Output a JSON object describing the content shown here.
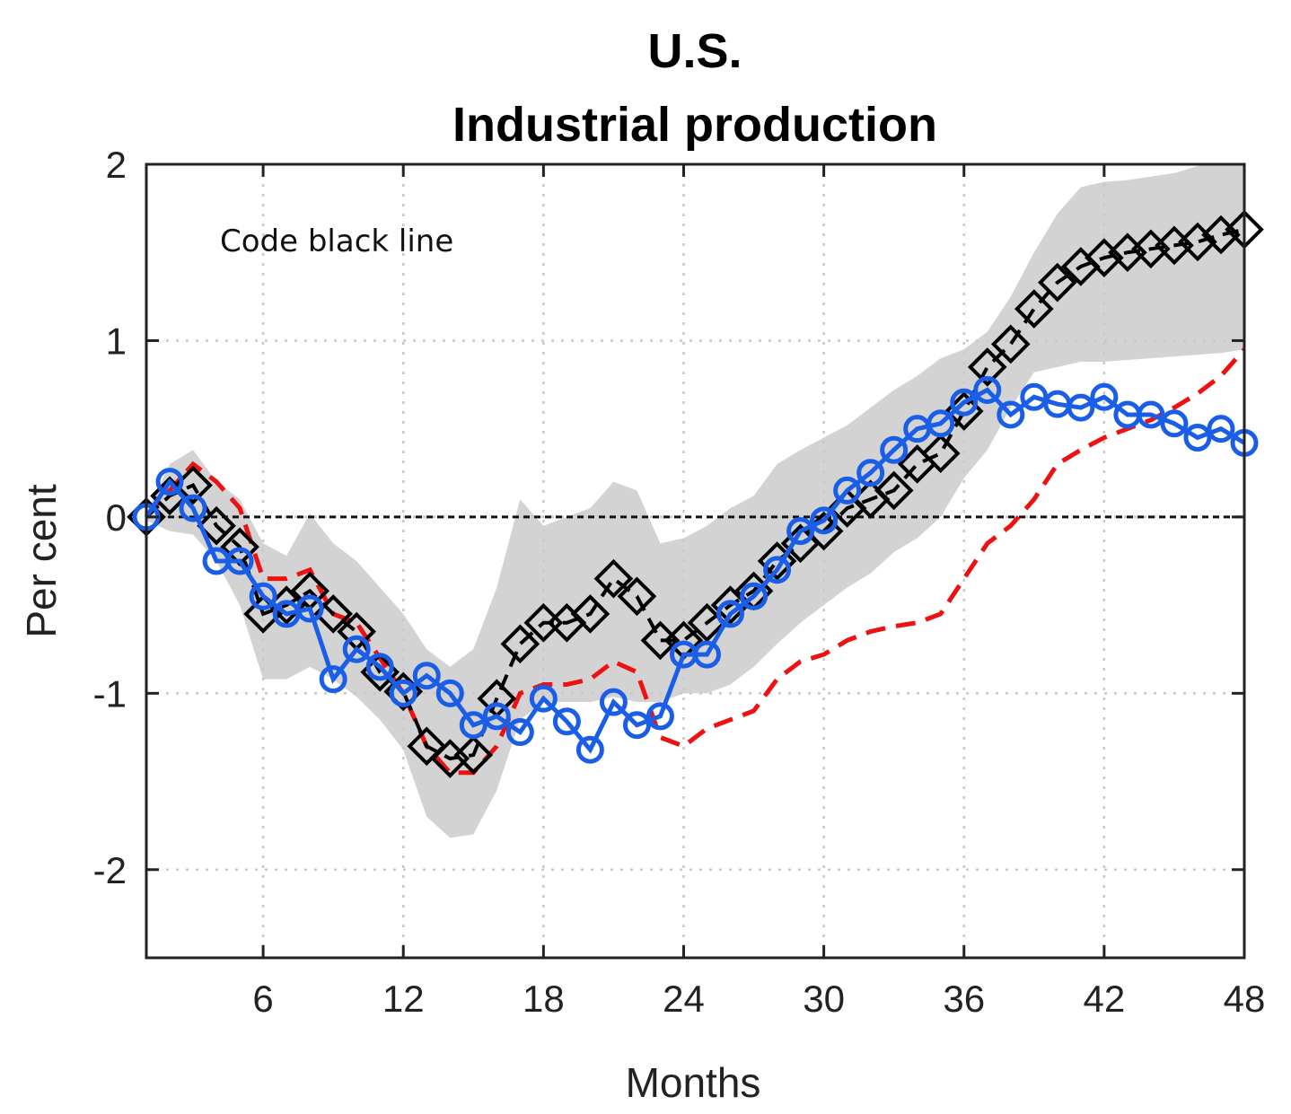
{
  "chart_data": {
    "type": "line",
    "title": "U.S.",
    "subtitle": "Industrial production",
    "xlabel": "Months",
    "ylabel": "Per cent",
    "xlim": [
      1,
      48
    ],
    "ylim": [
      -2.5,
      2
    ],
    "xticks": [
      6,
      12,
      18,
      24,
      30,
      36,
      42,
      48
    ],
    "yticks": [
      2,
      1,
      0,
      -1,
      -2
    ],
    "xtick_labels": [
      "6",
      "12",
      "18",
      "24",
      "30",
      "36",
      "42",
      "48"
    ],
    "ytick_labels": [
      "2",
      "1",
      "0",
      "-1",
      "-2"
    ],
    "grid": true,
    "zero_line": true,
    "annotation": "Code black line",
    "colors": {
      "band": "#d3d3d3",
      "black_line": "#000000",
      "red_line": "#ee1111",
      "blue_line": "#1a5ee8"
    },
    "x": [
      1,
      2,
      3,
      4,
      5,
      6,
      7,
      8,
      9,
      10,
      11,
      12,
      13,
      14,
      15,
      16,
      17,
      18,
      19,
      20,
      21,
      22,
      23,
      24,
      25,
      26,
      27,
      28,
      29,
      30,
      31,
      32,
      33,
      34,
      35,
      36,
      37,
      38,
      39,
      40,
      41,
      42,
      43,
      44,
      45,
      46,
      47,
      48
    ],
    "band_upper": [
      0.02,
      0.3,
      0.38,
      0.2,
      0.1,
      -0.15,
      -0.22,
      0.02,
      -0.15,
      -0.25,
      -0.4,
      -0.55,
      -0.75,
      -0.85,
      -0.75,
      -0.4,
      0.1,
      -0.05,
      0.0,
      0.05,
      0.2,
      0.15,
      -0.15,
      -0.12,
      -0.05,
      0.05,
      0.12,
      0.3,
      0.38,
      0.45,
      0.52,
      0.62,
      0.72,
      0.8,
      0.9,
      0.95,
      1.05,
      1.25,
      1.5,
      1.72,
      1.87,
      1.9,
      1.91,
      1.93,
      1.95,
      1.99,
      2.01,
      2.0
    ],
    "band_lower": [
      -0.02,
      -0.08,
      -0.1,
      -0.25,
      -0.5,
      -0.92,
      -0.92,
      -0.85,
      -0.92,
      -1.02,
      -1.15,
      -1.32,
      -1.7,
      -1.82,
      -1.8,
      -1.55,
      -1.15,
      -1.05,
      -1.05,
      -1.05,
      -1.02,
      -1.05,
      -1.05,
      -1.0,
      -1.0,
      -0.95,
      -0.85,
      -0.72,
      -0.6,
      -0.5,
      -0.4,
      -0.32,
      -0.2,
      -0.12,
      0.0,
      0.22,
      0.38,
      0.62,
      0.82,
      0.85,
      0.88,
      0.88,
      0.89,
      0.9,
      0.91,
      0.92,
      0.93,
      0.95
    ],
    "series": [
      {
        "style": "black dashed with diamond markers",
        "values": [
          0.0,
          0.12,
          0.18,
          -0.05,
          -0.17,
          -0.55,
          -0.5,
          -0.42,
          -0.55,
          -0.65,
          -0.88,
          -0.99,
          -1.3,
          -1.37,
          -1.35,
          -1.03,
          -0.72,
          -0.6,
          -0.6,
          -0.55,
          -0.35,
          -0.45,
          -0.7,
          -0.7,
          -0.6,
          -0.5,
          -0.42,
          -0.25,
          -0.15,
          -0.08,
          0.05,
          0.1,
          0.15,
          0.3,
          0.36,
          0.6,
          0.85,
          0.98,
          1.18,
          1.33,
          1.42,
          1.47,
          1.5,
          1.52,
          1.54,
          1.56,
          1.6,
          1.63
        ]
      },
      {
        "style": "red dashed",
        "values": [
          0.0,
          0.15,
          0.3,
          0.2,
          0.05,
          -0.35,
          -0.35,
          -0.3,
          -0.55,
          -0.6,
          -0.8,
          -1.0,
          -1.3,
          -1.45,
          -1.45,
          -1.3,
          -1.0,
          -0.95,
          -0.95,
          -0.92,
          -0.82,
          -0.88,
          -1.25,
          -1.3,
          -1.2,
          -1.15,
          -1.1,
          -0.92,
          -0.82,
          -0.78,
          -0.7,
          -0.65,
          -0.62,
          -0.6,
          -0.55,
          -0.35,
          -0.15,
          -0.05,
          0.1,
          0.3,
          0.38,
          0.45,
          0.5,
          0.55,
          0.62,
          0.7,
          0.8,
          0.95
        ]
      },
      {
        "style": "blue solid with circle markers",
        "values": [
          0.0,
          0.2,
          0.05,
          -0.25,
          -0.25,
          -0.45,
          -0.55,
          -0.52,
          -0.92,
          -0.75,
          -0.85,
          -1.0,
          -0.9,
          -1.0,
          -1.18,
          -1.13,
          -1.22,
          -1.03,
          -1.16,
          -1.32,
          -1.05,
          -1.18,
          -1.13,
          -0.78,
          -0.78,
          -0.55,
          -0.45,
          -0.3,
          -0.08,
          -0.02,
          0.15,
          0.25,
          0.38,
          0.5,
          0.53,
          0.65,
          0.72,
          0.58,
          0.68,
          0.64,
          0.62,
          0.68,
          0.58,
          0.58,
          0.53,
          0.45,
          0.5,
          0.42
        ]
      }
    ]
  }
}
